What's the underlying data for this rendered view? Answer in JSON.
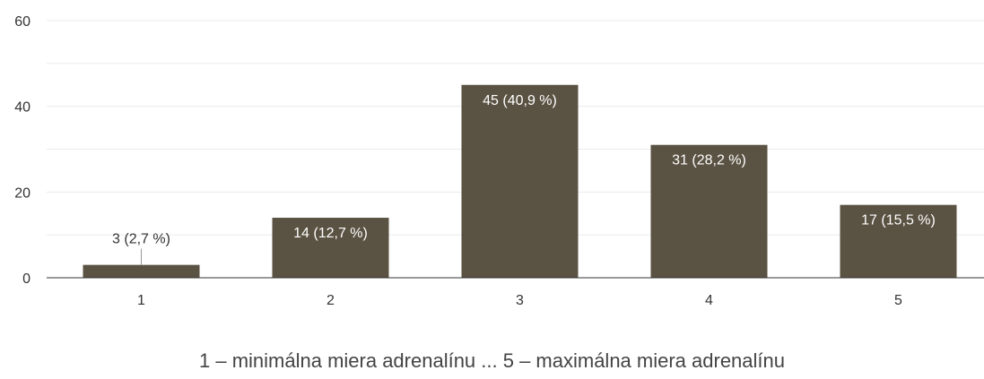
{
  "caption": "1 – minimálna miera adrenalínu     ...     5 – maximálna miera adrenalínu",
  "colors": {
    "bar": "#5a5242",
    "grid": "#ebebeb",
    "axis": "#333333",
    "label_inside": "#ffffff",
    "label_outside": "#333333"
  },
  "chart_data": {
    "type": "bar",
    "categories": [
      "1",
      "2",
      "3",
      "4",
      "5"
    ],
    "values": [
      3,
      14,
      45,
      31,
      17
    ],
    "data_labels": [
      "3 (2,7 %)",
      "14 (12,7 %)",
      "45 (40,9 %)",
      "31 (28,2 %)",
      "17 (15,5 %)"
    ],
    "y_ticks": [
      "0",
      "20",
      "40",
      "60"
    ],
    "ylim": [
      0,
      60
    ],
    "grid": true,
    "legend": "none",
    "title": "",
    "xlabel": "",
    "ylabel": ""
  }
}
